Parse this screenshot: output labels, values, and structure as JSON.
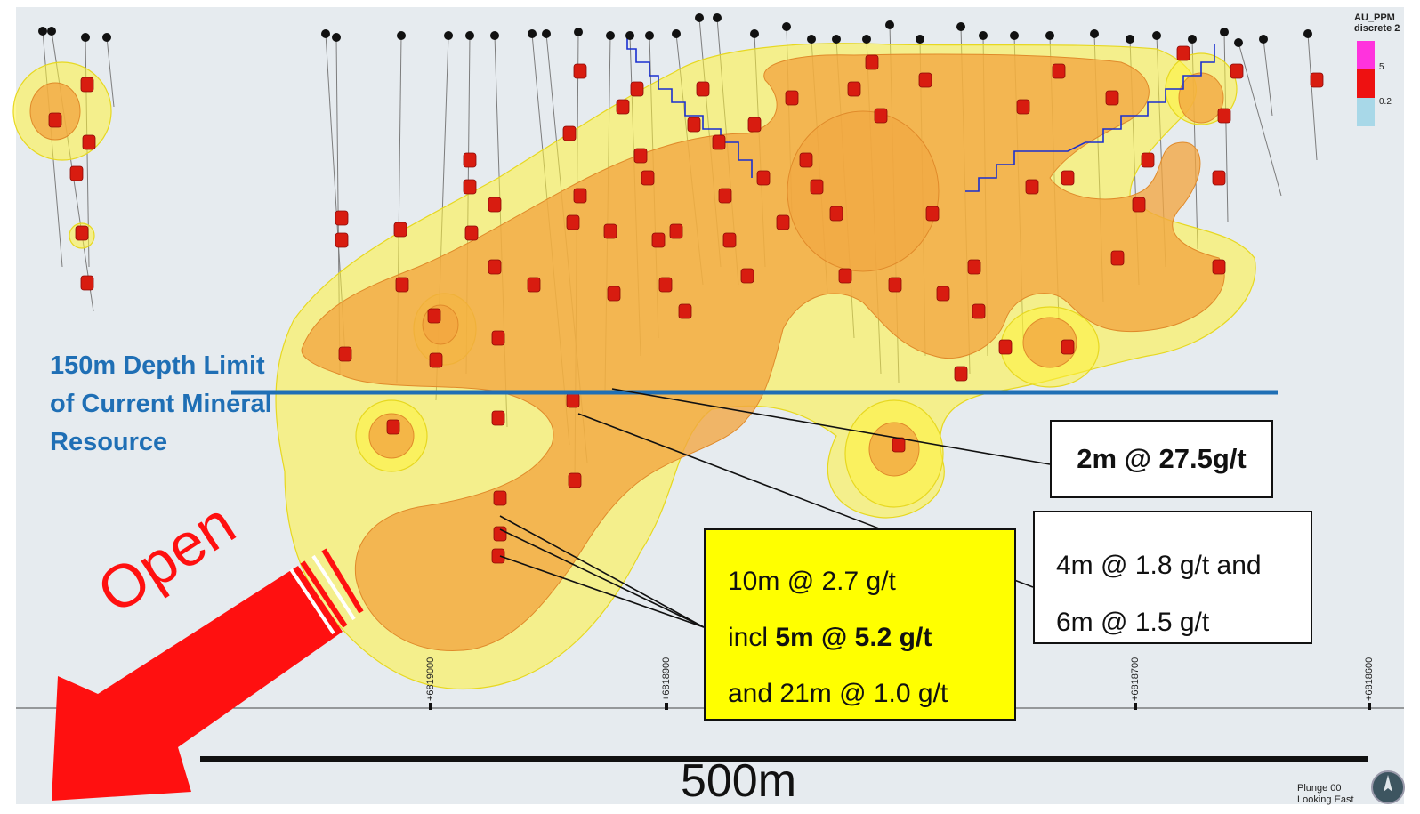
{
  "depth_limit": {
    "line1": "150m Depth Limit",
    "line2": "of Current Mineral",
    "line3": "Resource"
  },
  "callout_1": {
    "text": "2m @ 27.5g/t"
  },
  "callout_2": {
    "line1": "4m @ 1.8 g/t and",
    "line2": "6m @ 1.5 g/t"
  },
  "callout_3": {
    "line1": "10m @ 2.7 g/t",
    "line2_prefix": "incl ",
    "line2_bold": "5m @ 5.2 g/t",
    "line3": "and 21m @ 1.0 g/t"
  },
  "open_label": "Open",
  "scale_bar_label": "500m",
  "legend": {
    "title_line1": "AU_PPM",
    "title_line2": "discrete 2",
    "value_high": "5",
    "value_low": "0.2",
    "colors": {
      "high": "#ff33dd",
      "mid": "#ee1111",
      "low": "#a8d8e8"
    }
  },
  "coordinates": [
    "+6819000",
    "+6818900",
    "+6818700",
    "+6818600"
  ],
  "view_info": {
    "line1": "Plunge 00",
    "line2": "Looking East"
  },
  "colors": {
    "background": "#e6ebef",
    "shell_outer": "#fff23a",
    "shell_inner": "#f2a540",
    "depth_line": "#1f6fb5",
    "arrow": "#ff1010",
    "drillhole_intercept": "#d81c10"
  },
  "icons": [
    "open-arrow-icon",
    "compass-globe-icon"
  ]
}
